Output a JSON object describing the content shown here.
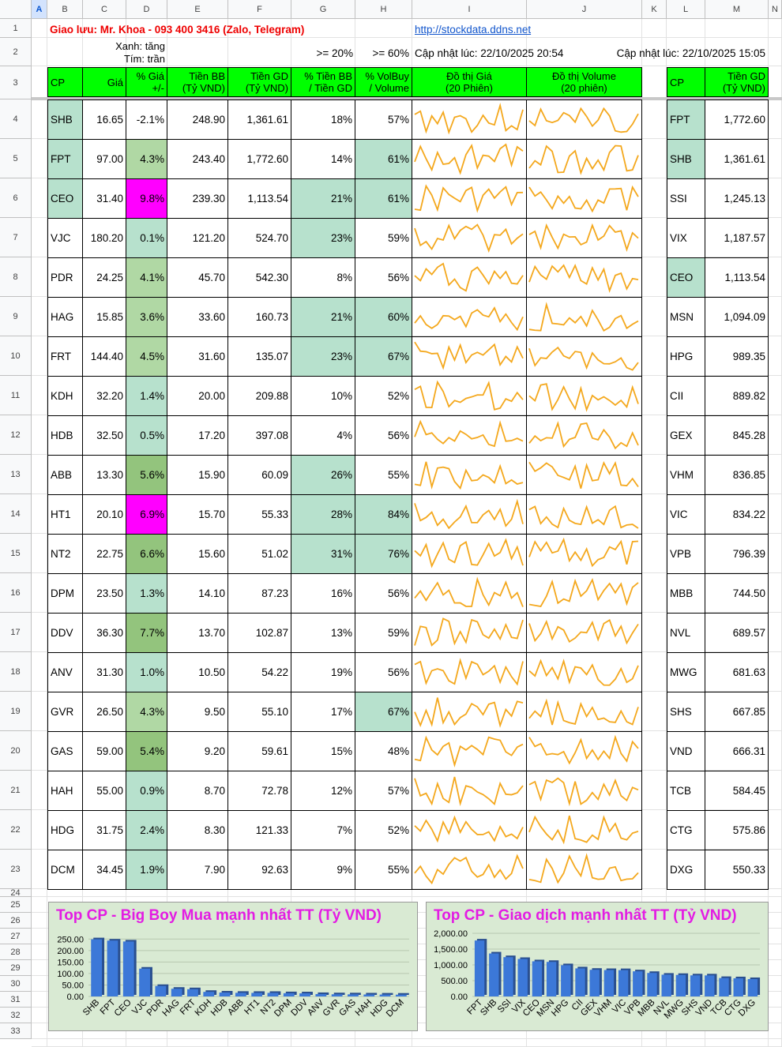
{
  "columns": [
    "A",
    "B",
    "C",
    "D",
    "E",
    "F",
    "G",
    "H",
    "I",
    "J",
    "K",
    "L",
    "M",
    "N"
  ],
  "row1": {
    "contact": "Giao lưu: Mr. Khoa - 093 400 3416 (Zalo, Telegram)",
    "link": "http://stockdata.ddns.net"
  },
  "row2": {
    "legend_green": "Xanh: tăng",
    "legend_purple": "Tím: trần",
    "thr1": ">= 20%",
    "thr2": ">= 60%",
    "updated_left": "Cập nhật lúc: 22/10/2025 20:54",
    "updated_right": "Cập nhật lúc: 22/10/2025 15:05"
  },
  "headers": {
    "cp": "CP",
    "gia": "Giá",
    "pct_gia": [
      "% Giá",
      "+/-"
    ],
    "tien_bb": [
      "Tiền BB",
      "(Tỷ VND)"
    ],
    "tien_gd": [
      "Tiền GD",
      "(Tỷ VND)"
    ],
    "pct_bb": [
      "% Tiền BB",
      "/ Tiền GD"
    ],
    "pct_vol": [
      "% VolBuy",
      "/ Volume"
    ],
    "do_thi_gia": [
      "Đồ thị Giá",
      "(20 Phiên)"
    ],
    "do_thi_vol": [
      "Đồ thị Volume",
      "(20 phiên)"
    ],
    "cp2": "CP",
    "tien_gd2": [
      "Tiền GD",
      "(Tỷ VND)"
    ]
  },
  "colors": {
    "green_header": "#00ff00",
    "teal": "#b7e1cd",
    "magenta": "#ff00ff",
    "spark": "#f4a81d",
    "chart_bg": "#d9ead3",
    "chart_title": "#e31ce3",
    "bar": "#3c78d8"
  },
  "rows": [
    {
      "cp": "SHB",
      "gia": "16.65",
      "pct": "-2.1%",
      "bb": "248.90",
      "gd": "1,361.61",
      "pbb": "18%",
      "pvol": "57%",
      "cp2": "FPT",
      "gd2": "1,772.60",
      "cpc": "t",
      "pctc": "",
      "pbbc": "",
      "pvolc": "",
      "cp2c": "t"
    },
    {
      "cp": "FPT",
      "gia": "97.00",
      "pct": "4.3%",
      "bb": "243.40",
      "gd": "1,772.60",
      "pbb": "14%",
      "pvol": "61%",
      "cp2": "SHB",
      "gd2": "1,361.61",
      "cpc": "t",
      "pctc": "g2",
      "pbbc": "",
      "pvolc": "t",
      "cp2c": "t"
    },
    {
      "cp": "CEO",
      "gia": "31.40",
      "pct": "9.8%",
      "bb": "239.30",
      "gd": "1,113.54",
      "pbb": "21%",
      "pvol": "61%",
      "cp2": "SSI",
      "gd2": "1,245.13",
      "cpc": "t",
      "pctc": "m",
      "pbbc": "t",
      "pvolc": "t",
      "cp2c": ""
    },
    {
      "cp": "VJC",
      "gia": "180.20",
      "pct": "0.1%",
      "bb": "121.20",
      "gd": "524.70",
      "pbb": "23%",
      "pvol": "59%",
      "cp2": "VIX",
      "gd2": "1,187.57",
      "cpc": "",
      "pctc": "t",
      "pbbc": "t",
      "pvolc": "",
      "cp2c": ""
    },
    {
      "cp": "PDR",
      "gia": "24.25",
      "pct": "4.1%",
      "bb": "45.70",
      "gd": "542.30",
      "pbb": "8%",
      "pvol": "56%",
      "cp2": "CEO",
      "gd2": "1,113.54",
      "cpc": "",
      "pctc": "g2",
      "pbbc": "",
      "pvolc": "",
      "cp2c": "t"
    },
    {
      "cp": "HAG",
      "gia": "15.85",
      "pct": "3.6%",
      "bb": "33.60",
      "gd": "160.73",
      "pbb": "21%",
      "pvol": "60%",
      "cp2": "MSN",
      "gd2": "1,094.09",
      "cpc": "",
      "pctc": "g2",
      "pbbc": "t",
      "pvolc": "t",
      "cp2c": ""
    },
    {
      "cp": "FRT",
      "gia": "144.40",
      "pct": "4.5%",
      "bb": "31.60",
      "gd": "135.07",
      "pbb": "23%",
      "pvol": "67%",
      "cp2": "HPG",
      "gd2": "989.35",
      "cpc": "",
      "pctc": "g2",
      "pbbc": "t",
      "pvolc": "t",
      "cp2c": ""
    },
    {
      "cp": "KDH",
      "gia": "32.20",
      "pct": "1.4%",
      "bb": "20.00",
      "gd": "209.88",
      "pbb": "10%",
      "pvol": "52%",
      "cp2": "CII",
      "gd2": "889.82",
      "cpc": "",
      "pctc": "t",
      "pbbc": "",
      "pvolc": "",
      "cp2c": ""
    },
    {
      "cp": "HDB",
      "gia": "32.50",
      "pct": "0.5%",
      "bb": "17.20",
      "gd": "397.08",
      "pbb": "4%",
      "pvol": "56%",
      "cp2": "GEX",
      "gd2": "845.28",
      "cpc": "",
      "pctc": "t",
      "pbbc": "",
      "pvolc": "",
      "cp2c": ""
    },
    {
      "cp": "ABB",
      "gia": "13.30",
      "pct": "5.6%",
      "bb": "15.90",
      "gd": "60.09",
      "pbb": "26%",
      "pvol": "55%",
      "cp2": "VHM",
      "gd2": "836.85",
      "cpc": "",
      "pctc": "g3",
      "pbbc": "t",
      "pvolc": "",
      "cp2c": ""
    },
    {
      "cp": "HT1",
      "gia": "20.10",
      "pct": "6.9%",
      "bb": "15.70",
      "gd": "55.33",
      "pbb": "28%",
      "pvol": "84%",
      "cp2": "VIC",
      "gd2": "834.22",
      "cpc": "",
      "pctc": "m",
      "pbbc": "t",
      "pvolc": "t",
      "cp2c": ""
    },
    {
      "cp": "NT2",
      "gia": "22.75",
      "pct": "6.6%",
      "bb": "15.60",
      "gd": "51.02",
      "pbb": "31%",
      "pvol": "76%",
      "cp2": "VPB",
      "gd2": "796.39",
      "cpc": "",
      "pctc": "g3",
      "pbbc": "t",
      "pvolc": "t",
      "cp2c": ""
    },
    {
      "cp": "DPM",
      "gia": "23.50",
      "pct": "1.3%",
      "bb": "14.10",
      "gd": "87.23",
      "pbb": "16%",
      "pvol": "56%",
      "cp2": "MBB",
      "gd2": "744.50",
      "cpc": "",
      "pctc": "t",
      "pbbc": "",
      "pvolc": "",
      "cp2c": ""
    },
    {
      "cp": "DDV",
      "gia": "36.30",
      "pct": "7.7%",
      "bb": "13.70",
      "gd": "102.87",
      "pbb": "13%",
      "pvol": "59%",
      "cp2": "NVL",
      "gd2": "689.57",
      "cpc": "",
      "pctc": "g3",
      "pbbc": "",
      "pvolc": "",
      "cp2c": ""
    },
    {
      "cp": "ANV",
      "gia": "31.30",
      "pct": "1.0%",
      "bb": "10.50",
      "gd": "54.22",
      "pbb": "19%",
      "pvol": "56%",
      "cp2": "MWG",
      "gd2": "681.63",
      "cpc": "",
      "pctc": "t",
      "pbbc": "",
      "pvolc": "",
      "cp2c": ""
    },
    {
      "cp": "GVR",
      "gia": "26.50",
      "pct": "4.3%",
      "bb": "9.50",
      "gd": "55.10",
      "pbb": "17%",
      "pvol": "67%",
      "cp2": "SHS",
      "gd2": "667.85",
      "cpc": "",
      "pctc": "g2",
      "pbbc": "",
      "pvolc": "t",
      "cp2c": ""
    },
    {
      "cp": "GAS",
      "gia": "59.00",
      "pct": "5.4%",
      "bb": "9.20",
      "gd": "59.61",
      "pbb": "15%",
      "pvol": "48%",
      "cp2": "VND",
      "gd2": "666.31",
      "cpc": "",
      "pctc": "g3",
      "pbbc": "",
      "pvolc": "",
      "cp2c": ""
    },
    {
      "cp": "HAH",
      "gia": "55.00",
      "pct": "0.9%",
      "bb": "8.70",
      "gd": "72.78",
      "pbb": "12%",
      "pvol": "57%",
      "cp2": "TCB",
      "gd2": "584.45",
      "cpc": "",
      "pctc": "t",
      "pbbc": "",
      "pvolc": "",
      "cp2c": ""
    },
    {
      "cp": "HDG",
      "gia": "31.75",
      "pct": "2.4%",
      "bb": "8.30",
      "gd": "121.33",
      "pbb": "7%",
      "pvol": "52%",
      "cp2": "CTG",
      "gd2": "575.86",
      "cpc": "",
      "pctc": "t",
      "pbbc": "",
      "pvolc": "",
      "cp2c": ""
    },
    {
      "cp": "DCM",
      "gia": "34.45",
      "pct": "1.9%",
      "bb": "7.90",
      "gd": "92.63",
      "pbb": "9%",
      "pvol": "55%",
      "cp2": "DXG",
      "gd2": "550.33",
      "cpc": "",
      "pctc": "t",
      "pbbc": "",
      "pvolc": "",
      "cp2c": ""
    }
  ],
  "chart_data": [
    {
      "type": "bar",
      "title": "Top CP - Big Boy Mua mạnh nhất TT (Tỷ VND)",
      "categories": [
        "SHB",
        "FPT",
        "CEO",
        "VJC",
        "PDR",
        "HAG",
        "FRT",
        "KDH",
        "HDB",
        "ABB",
        "HT1",
        "NT2",
        "DPM",
        "DDV",
        "ANV",
        "GVR",
        "GAS",
        "HAH",
        "HDG",
        "DCM"
      ],
      "values": [
        248.9,
        243.4,
        239.3,
        121.2,
        45.7,
        33.6,
        31.6,
        20.0,
        17.2,
        15.9,
        15.7,
        15.6,
        14.1,
        13.7,
        10.5,
        9.5,
        9.2,
        8.7,
        8.3,
        7.9
      ],
      "yticks": [
        "0.00",
        "50.00",
        "100.00",
        "150.00",
        "200.00",
        "250.00"
      ],
      "ylim": [
        0,
        275
      ],
      "grid": true
    },
    {
      "type": "bar",
      "title": "Top CP - Giao dịch mạnh nhất TT (Tỷ VND)",
      "categories": [
        "FPT",
        "SHB",
        "SSI",
        "VIX",
        "CEO",
        "MSN",
        "HPG",
        "CII",
        "GEX",
        "VHM",
        "VIC",
        "VPB",
        "MBB",
        "NVL",
        "MWG",
        "SHS",
        "VND",
        "TCB",
        "CTG",
        "DXG"
      ],
      "values": [
        1772.6,
        1361.61,
        1245.13,
        1187.57,
        1113.54,
        1094.09,
        989.35,
        889.82,
        845.28,
        836.85,
        834.22,
        796.39,
        744.5,
        689.57,
        681.63,
        667.85,
        666.31,
        584.45,
        575.86,
        550.33
      ],
      "yticks": [
        "0.00",
        "500.00",
        "1,000.00",
        "1,500.00",
        "2,000.00"
      ],
      "ylim": [
        0,
        2000
      ],
      "grid": true
    }
  ]
}
